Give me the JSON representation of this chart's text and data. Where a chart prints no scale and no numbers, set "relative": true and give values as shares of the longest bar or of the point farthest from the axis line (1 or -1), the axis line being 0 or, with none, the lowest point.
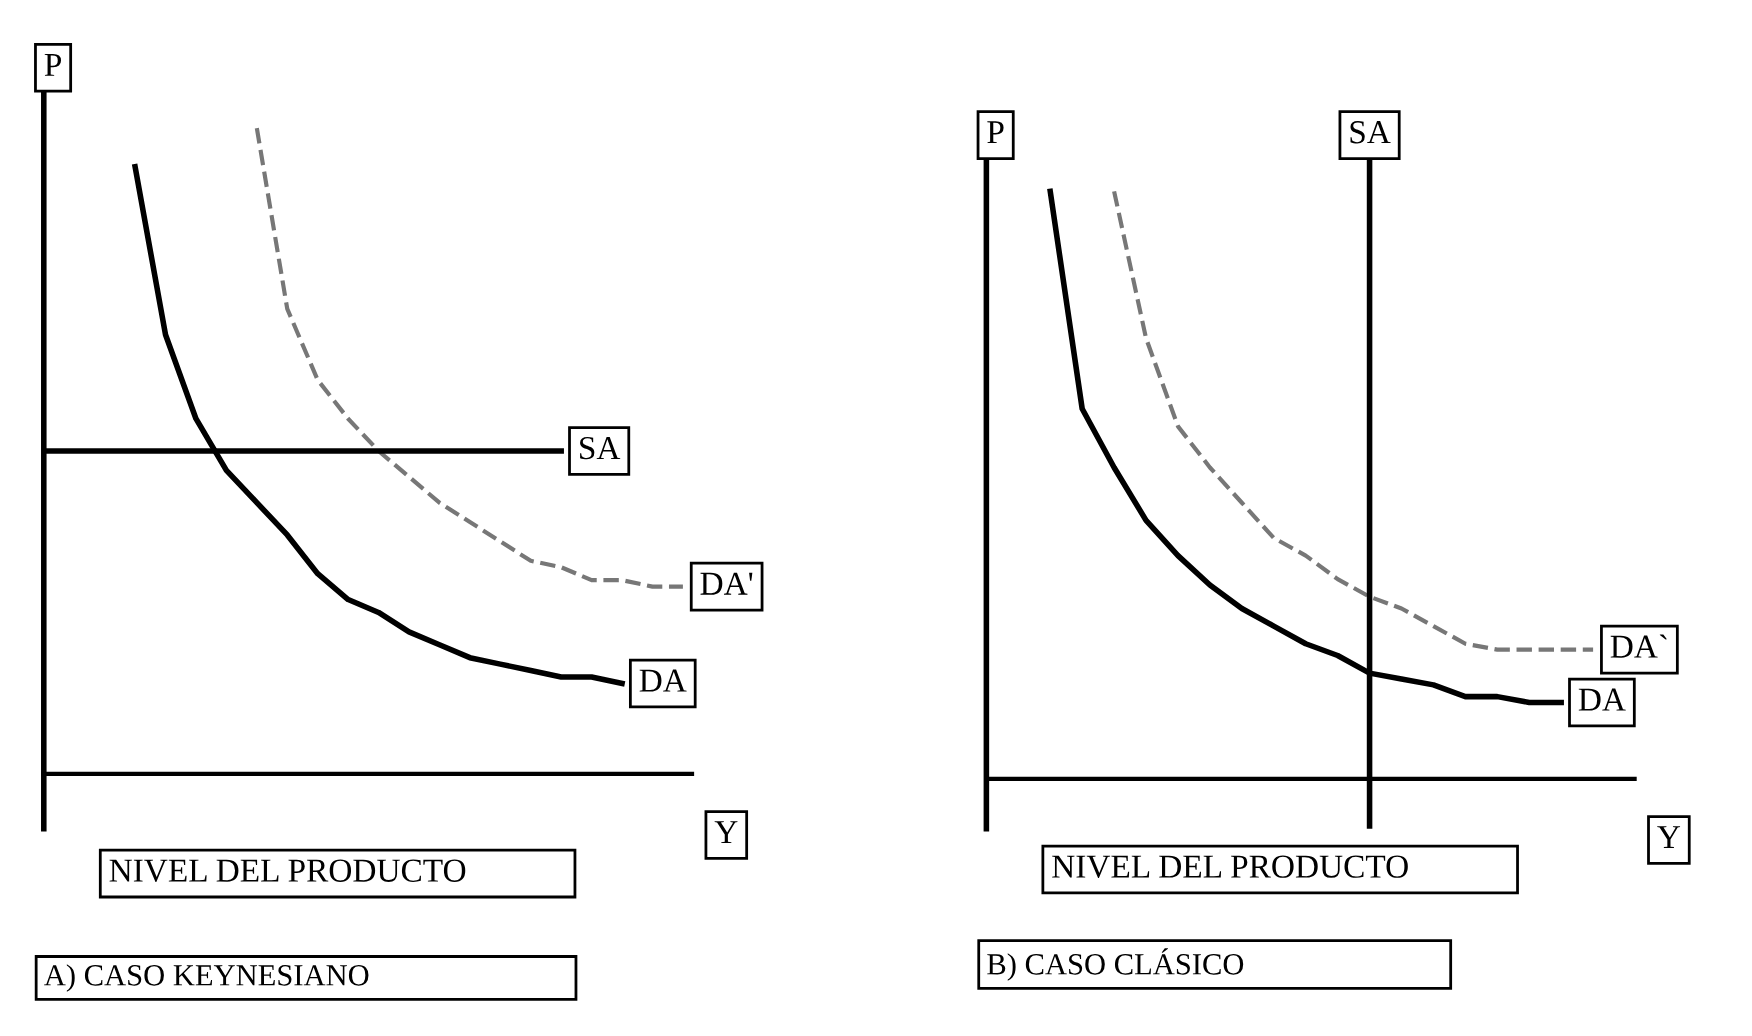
{
  "chart_data": [
    {
      "type": "line",
      "relative": true,
      "title": "A) CASO KEYNESIANO",
      "xlabel": "NIVEL DEL PRODUCTO",
      "ylabel": "P",
      "annotations": [
        "Y"
      ],
      "categories": [
        null,
        null,
        null,
        null,
        null,
        null,
        null,
        null,
        null,
        null,
        null,
        null,
        null,
        null,
        null,
        null,
        null,
        null,
        null,
        null,
        null,
        null
      ],
      "series": [
        {
          "name": "DA",
          "color": "#000000",
          "line_style": "solid",
          "values": [
            null,
            null,
            null,
            0.94,
            0.68,
            0.55,
            0.47,
            0.42,
            0.37,
            0.31,
            0.27,
            0.25,
            0.22,
            0.2,
            0.18,
            0.17,
            0.16,
            0.15,
            0.15,
            0.14,
            null,
            null
          ]
        },
        {
          "name": "DA'",
          "color": "#777777",
          "line_style": "dashed",
          "values": [
            null,
            null,
            null,
            null,
            null,
            null,
            null,
            1,
            0.72,
            0.61,
            0.55,
            0.5,
            0.46,
            0.42,
            0.39,
            0.36,
            0.33,
            0.32,
            0.3,
            0.3,
            0.29,
            0.29
          ]
        },
        {
          "name": "SA",
          "color": "#000000",
          "line_style": "solid",
          "values": [
            0.5,
            0.5,
            0.5,
            0.5,
            0.5,
            0.5,
            0.5,
            0.5,
            0.5,
            0.5,
            0.5,
            0.5,
            0.5,
            0.5,
            0.5,
            0.5,
            0.5,
            0.5,
            null,
            null,
            null,
            null
          ]
        }
      ]
    },
    {
      "type": "line",
      "relative": true,
      "title": "B) CASO CLÁSICO",
      "xlabel": "NIVEL DEL PRODUCTO",
      "ylabel": "P",
      "annotations": [
        "Y"
      ],
      "categories": [
        null,
        null,
        null,
        null,
        null,
        null,
        null,
        null,
        null,
        null,
        null,
        null,
        null,
        null,
        null,
        null,
        null,
        null,
        null,
        null,
        null
      ],
      "ref_lines": [
        {
          "axis": "x",
          "label": "SA",
          "color": "#000000"
        }
      ],
      "series": [
        {
          "name": "DA",
          "color": "#000000",
          "line_style": "solid",
          "values": [
            null,
            null,
            1,
            0.63,
            0.53,
            0.44,
            0.38,
            0.33,
            0.29,
            0.26,
            0.23,
            0.21,
            0.18,
            0.17,
            0.16,
            0.14,
            0.14,
            0.13,
            0.13,
            null,
            null
          ]
        },
        {
          "name": "DA`",
          "color": "#777777",
          "line_style": "dashed",
          "values": [
            null,
            null,
            null,
            null,
            1,
            0.75,
            0.6,
            0.53,
            0.47,
            0.41,
            0.38,
            0.34,
            0.31,
            0.29,
            0.26,
            0.23,
            0.22,
            0.22,
            0.22,
            0.22,
            null
          ]
        }
      ]
    }
  ]
}
